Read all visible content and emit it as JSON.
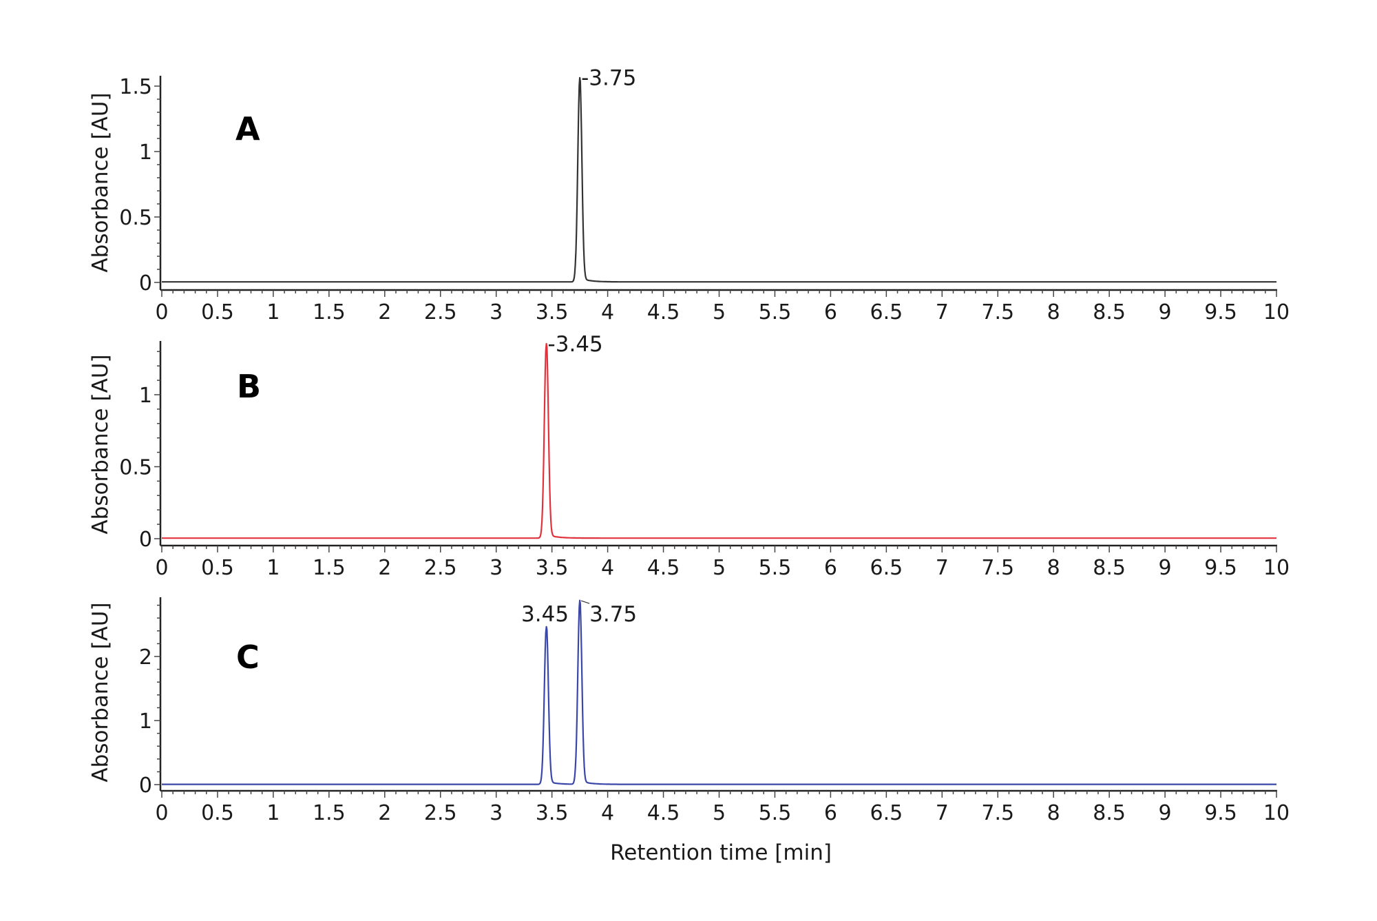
{
  "chart_data": [
    {
      "type": "line",
      "panel": "A",
      "title": "A",
      "xlabel": "",
      "ylabel": "Absorbance [AU]",
      "xlim": [
        0,
        10
      ],
      "ylim": [
        0,
        1.58
      ],
      "x_ticks": [
        "0",
        "0.5",
        "1",
        "1.5",
        "2",
        "2.5",
        "3",
        "3.5",
        "4",
        "4.5",
        "5",
        "5.5",
        "6",
        "6.5",
        "7",
        "7.5",
        "8",
        "8.5",
        "9",
        "9.5",
        "10"
      ],
      "y_ticks": [
        "0",
        "0.5",
        "1",
        "1.5"
      ],
      "grid": false,
      "color": "#333333",
      "baseline": 0.0,
      "peaks": [
        {
          "retention_time": 3.75,
          "height": 1.56,
          "label": "-3.75"
        }
      ]
    },
    {
      "type": "line",
      "panel": "B",
      "title": "B",
      "xlabel": "",
      "ylabel": "Absorbance [AU]",
      "xlim": [
        0,
        10
      ],
      "ylim": [
        0,
        1.37
      ],
      "x_ticks": [
        "0",
        "0.5",
        "1",
        "1.5",
        "2",
        "2.5",
        "3",
        "3.5",
        "4",
        "4.5",
        "5",
        "5.5",
        "6",
        "6.5",
        "7",
        "7.5",
        "8",
        "8.5",
        "9",
        "9.5",
        "10"
      ],
      "y_ticks": [
        "0",
        "0.5",
        "1"
      ],
      "grid": false,
      "color": "#e0323c",
      "baseline": 0.0,
      "peaks": [
        {
          "retention_time": 3.45,
          "height": 1.35,
          "label": "-3.45"
        }
      ]
    },
    {
      "type": "line",
      "panel": "C",
      "title": "C",
      "xlabel": "Retention time [min]",
      "ylabel": "Absorbance [AU]",
      "xlim": [
        0,
        10
      ],
      "ylim": [
        0,
        2.93
      ],
      "x_ticks": [
        "0",
        "0.5",
        "1",
        "1.5",
        "2",
        "2.5",
        "3",
        "3.5",
        "4",
        "4.5",
        "5",
        "5.5",
        "6",
        "6.5",
        "7",
        "7.5",
        "8",
        "8.5",
        "9",
        "9.5",
        "10"
      ],
      "y_ticks": [
        "0",
        "1",
        "2"
      ],
      "grid": false,
      "color": "#3a47a8",
      "baseline": 0.0,
      "peaks": [
        {
          "retention_time": 3.45,
          "height": 2.46,
          "label": "3.45"
        },
        {
          "retention_time": 3.75,
          "height": 2.87,
          "label": "3.75"
        }
      ]
    }
  ],
  "figure": {
    "panels": [
      {
        "letter": "A",
        "ylabel": "Absorbance [AU]",
        "peak_labels": [
          "-3.75"
        ]
      },
      {
        "letter": "B",
        "ylabel": "Absorbance [AU]",
        "peak_labels": [
          "-3.45"
        ]
      },
      {
        "letter": "C",
        "ylabel": "Absorbance [AU]",
        "peak_labels": [
          "3.45",
          "3.75"
        ]
      }
    ],
    "xlabel": "Retention time [min]"
  }
}
